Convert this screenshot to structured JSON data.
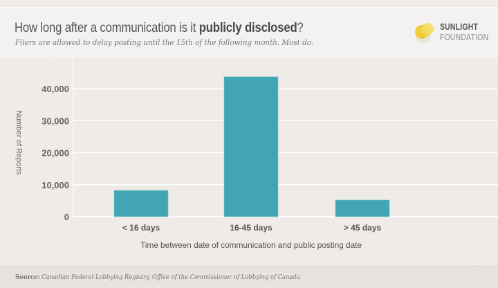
{
  "header": {
    "title_plain": "How long after a communication is it ",
    "title_bold": "publicly disclosed",
    "title_end": "?",
    "subtitle": "Filers are allowed to delay posting until the 15th of the following month. Most do.",
    "logo_line1": "SUNLIGHT",
    "logo_line2": "FOUNDATION"
  },
  "footer": {
    "source_label": "Source:",
    "source_text": "Canadian Federal Lobbying Registry, Office of the Commissioner of Lobbying of Canada"
  },
  "colors": {
    "bar": "#41a5b4",
    "background": "#efebe8"
  },
  "chart_data": {
    "type": "bar",
    "title": "How long after a communication is it publicly disclosed?",
    "categories": [
      "< 16 days",
      "16-45 days",
      "> 45 days"
    ],
    "values": [
      8200,
      43700,
      5200
    ],
    "xlabel": "Time between date of communication and public posting date",
    "ylabel": "Number of Reports",
    "ylim": [
      0,
      40000
    ],
    "yticks": [
      0,
      10000,
      20000,
      30000,
      40000
    ],
    "ytick_labels": [
      "0",
      "10,000",
      "20,000",
      "30,000",
      "40,000"
    ],
    "grid": true,
    "legend": "none"
  }
}
